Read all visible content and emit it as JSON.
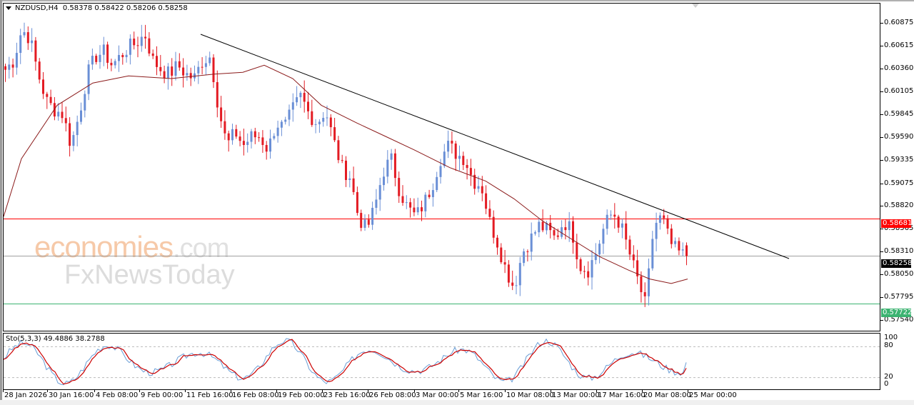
{
  "header": {
    "symbol_timeframe": "NZDUSD,H4",
    "ohlc": "0.58378 0.58422 0.58206 0.58258"
  },
  "indicator": {
    "label": "Sto(5,3,3) 49.4886 38.2788",
    "levels": [
      "100",
      "80",
      "20",
      "0"
    ]
  },
  "watermark": {
    "line1_main": "economies",
    "line1_suffix": ".com",
    "line2": "FxNewsToday"
  },
  "price_axis": {
    "labels": [
      "0.60875",
      "0.60615",
      "0.60360",
      "0.60105",
      "0.59845",
      "0.59590",
      "0.59335",
      "0.59075",
      "0.58820",
      "0.58565",
      "0.58310",
      "0.58050",
      "0.57795",
      "0.57540"
    ]
  },
  "price_tags": {
    "resistance": {
      "value": "0.58681",
      "color": "#ff0000"
    },
    "current": {
      "value": "0.58258",
      "color": "#000000"
    },
    "support": {
      "value": "0.57722",
      "color": "#3cb371"
    }
  },
  "time_axis": {
    "labels": [
      "28 Jan 2026",
      "30 Jan 16:00",
      "4 Feb 08:00",
      "9 Feb 00:00",
      "11 Feb 16:00",
      "16 Feb 08:00",
      "19 Feb 00:00",
      "23 Feb 16:00",
      "26 Feb 08:00",
      "3 Mar 00:00",
      "5 Mar 16:00",
      "10 Mar 08:00",
      "13 Mar 00:00",
      "17 Mar 16:00",
      "20 Mar 08:00",
      "25 Mar 00:00"
    ]
  },
  "colors": {
    "bull": "#6a8fd6",
    "bear": "#e31b23",
    "ma": "#8b1a1a",
    "trendline": "#000000",
    "stoch_main": "#6a9ed6",
    "stoch_signal": "#cc0000"
  },
  "chart_data": {
    "type": "candlestick",
    "title": "NZDUSD,H4",
    "instrument": "NZDUSD",
    "timeframe": "H4",
    "last_ohlc": {
      "open": 0.58378,
      "high": 0.58422,
      "low": 0.58206,
      "close": 0.58258
    },
    "ylim": [
      0.574,
      0.61
    ],
    "y_ticks": [
      0.60875,
      0.60615,
      0.6036,
      0.60105,
      0.59845,
      0.5959,
      0.59335,
      0.59075,
      0.5882,
      0.58565,
      0.5831,
      0.5805,
      0.57795,
      0.5754
    ],
    "x_ticks": [
      "28 Jan 2026",
      "30 Jan 16:00",
      "4 Feb 08:00",
      "9 Feb 00:00",
      "11 Feb 16:00",
      "16 Feb 08:00",
      "19 Feb 00:00",
      "23 Feb 16:00",
      "26 Feb 08:00",
      "3 Mar 00:00",
      "5 Mar 16:00",
      "10 Mar 08:00",
      "13 Mar 00:00",
      "17 Mar 16:00",
      "20 Mar 08:00",
      "25 Mar 00:00"
    ],
    "horizontal_lines": [
      {
        "name": "resistance",
        "value": 0.58681,
        "color": "#ff0000"
      },
      {
        "name": "current_price",
        "value": 0.58258,
        "color": "#a0a0a0"
      },
      {
        "name": "support",
        "value": 0.57722,
        "color": "#3cb371"
      }
    ],
    "trendline": {
      "from": {
        "time": "11 Feb 16:00",
        "price": 0.6075
      },
      "to": {
        "time": "~27 Mar",
        "price": 0.5833
      },
      "direction": "descending"
    },
    "close_path": [
      0.6035,
      0.6045,
      0.608,
      0.607,
      0.603,
      0.6,
      0.599,
      0.5985,
      0.595,
      0.5985,
      0.603,
      0.605,
      0.6055,
      0.604,
      0.605,
      0.606,
      0.6065,
      0.6075,
      0.6045,
      0.6035,
      0.603,
      0.604,
      0.603,
      0.6025,
      0.6045,
      0.605,
      0.599,
      0.595,
      0.5965,
      0.595,
      0.596,
      0.596,
      0.5945,
      0.5975,
      0.597,
      0.599,
      0.6005,
      0.5985,
      0.5975,
      0.599,
      0.5955,
      0.5925,
      0.5915,
      0.587,
      0.5855,
      0.588,
      0.592,
      0.5935,
      0.59,
      0.588,
      0.587,
      0.5885,
      0.5905,
      0.5935,
      0.595,
      0.594,
      0.5935,
      0.591,
      0.5905,
      0.5865,
      0.584,
      0.581,
      0.579,
      0.583,
      0.5845,
      0.586,
      0.5855,
      0.5845,
      0.5865,
      0.5855,
      0.5815,
      0.581,
      0.583,
      0.586,
      0.5875,
      0.586,
      0.583,
      0.58,
      0.577,
      0.586,
      0.587,
      0.584,
      0.583,
      0.5825
    ],
    "moving_average": {
      "description": "smooth MA, rises from 0.5870 to 0.6030 then declines to 0.5830"
    },
    "stochastic": {
      "k_period": 5,
      "d_period": 3,
      "slowing": 3,
      "main": 49.4886,
      "signal": 38.2788,
      "levels": [
        20,
        80
      ],
      "range": [
        0,
        100
      ]
    }
  }
}
